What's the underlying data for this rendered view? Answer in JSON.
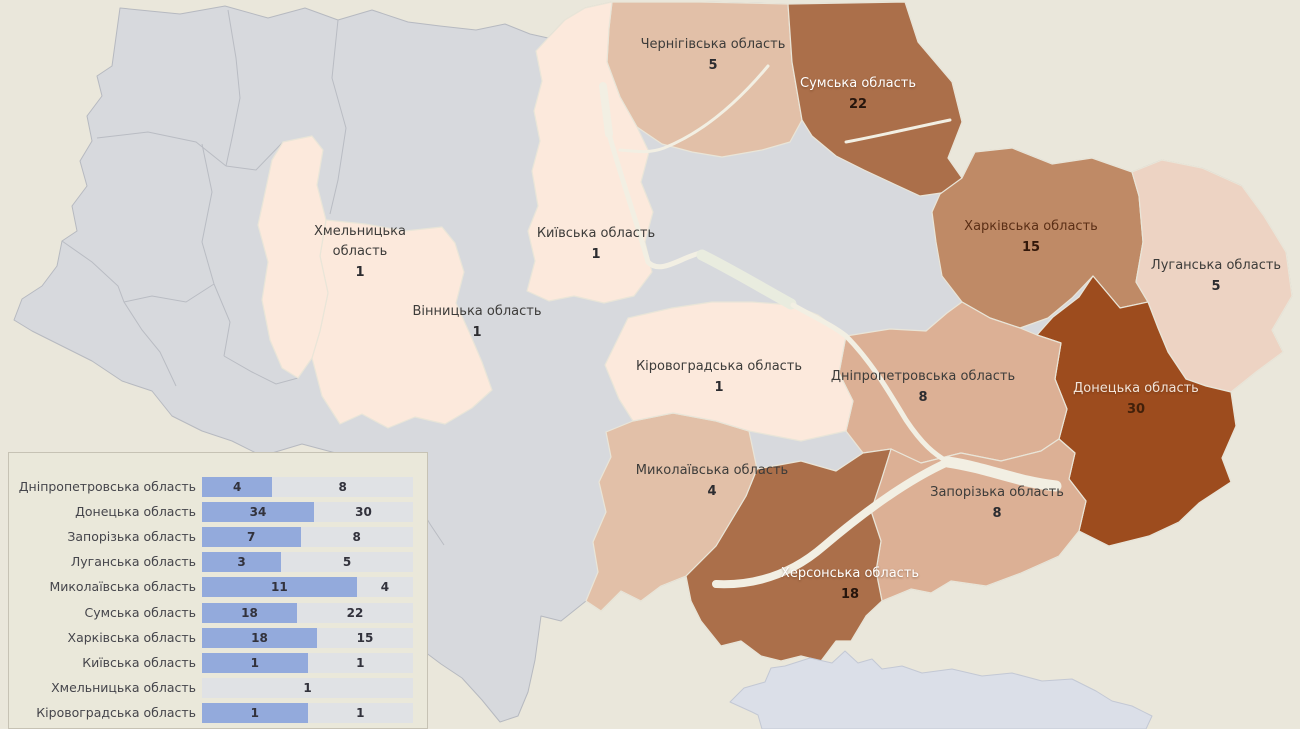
{
  "colors": {
    "background": "#eae7db",
    "region_default_fill": "#d7d9dd",
    "region_border": "#b6b9c0",
    "colored_region_border": "#e9e5d8",
    "crimea_fill": "#dbdfe8",
    "crimea_border": "#c3c8d4",
    "water": "#f2efe3",
    "reservoir": "#e9ecdf",
    "panel_background": "#eae8da",
    "panel_border": "#c6c2b4",
    "bar_fill": "#93aadc",
    "bar_track": "#e0e2e5",
    "choropleth_scale": {
      "1": "#fce9dc",
      "4_5": "#e2c0a8",
      "5_light": "#edd3c3",
      "8": "#dcb095",
      "15": "#bf8a66",
      "18_22": "#ab6f4a",
      "30": "#9d4c1e"
    }
  },
  "map": {
    "regions": [
      {
        "id": "chernihiv",
        "name": "Чернігівська область",
        "value": "5",
        "fill": "#e2c0a8",
        "label_color": "#3d3c3a",
        "value_color": "#2c2c30"
      },
      {
        "id": "sumy",
        "name": "Сумська область",
        "value": "22",
        "fill": "#ab6f4a",
        "label_color": "#ffffff",
        "value_color": "#26150c"
      },
      {
        "id": "kharkiv",
        "name": "Харківська область",
        "value": "15",
        "fill": "#bf8a66",
        "label_color": "#5b2f16",
        "value_color": "#33180a"
      },
      {
        "id": "luhansk",
        "name": "Луганська область",
        "value": "5",
        "fill": "#edd3c3",
        "label_color": "#3d3c3a",
        "value_color": "#2c2c30"
      },
      {
        "id": "donetsk",
        "name": "Донецька область",
        "value": "30",
        "fill": "#9d4c1e",
        "label_color": "#f2e4d9",
        "value_color": "#41200a"
      },
      {
        "id": "dnipro",
        "name": "Дніпропетровська область",
        "value": "8",
        "fill": "#dcb095",
        "label_color": "#3d3c3a",
        "value_color": "#2c2c30"
      },
      {
        "id": "zaporizhzhia",
        "name": "Запорізька область",
        "value": "8",
        "fill": "#dcb095",
        "label_color": "#3d3c3a",
        "value_color": "#2c2c30"
      },
      {
        "id": "kherson",
        "name": "Херсонська область",
        "value": "18",
        "fill": "#ab6f4a",
        "label_color": "#ffffff",
        "value_color": "#26150c"
      },
      {
        "id": "mykolaiv",
        "name": "Миколаївська область",
        "value": "4",
        "fill": "#e2c0a8",
        "label_color": "#3d3c3a",
        "value_color": "#2c2c30"
      },
      {
        "id": "kirovohrad",
        "name": "Кіровоградська область",
        "value": "1",
        "fill": "#fce9dc",
        "label_color": "#3d3c3a",
        "value_color": "#2c2c30"
      },
      {
        "id": "kyiv",
        "name": "Київська область",
        "value": "1",
        "fill": "#fce9dc",
        "label_color": "#3d3c3a",
        "value_color": "#2c2c30"
      },
      {
        "id": "vinnytsia",
        "name": "Вінницька область",
        "value": "1",
        "fill": "#fce9dc",
        "label_color": "#3d3c3a",
        "value_color": "#2c2c30"
      },
      {
        "id": "khmelnytskyi",
        "name": "Хмельницька область",
        "value": "1",
        "fill": "#fce9dc",
        "label_color": "#3d3c3a",
        "value_color": "#2c2c30",
        "two_line": true
      }
    ]
  },
  "panel": {
    "rows": [
      {
        "label": "Дніпропетровська область",
        "v1": "4",
        "v2": "8"
      },
      {
        "label": "Донецька область",
        "v1": "34",
        "v2": "30"
      },
      {
        "label": "Запорізька область",
        "v1": "7",
        "v2": "8"
      },
      {
        "label": "Луганська область",
        "v1": "3",
        "v2": "5"
      },
      {
        "label": "Миколаївська область",
        "v1": "11",
        "v2": "4"
      },
      {
        "label": "Сумська область",
        "v1": "18",
        "v2": "22"
      },
      {
        "label": "Харківська область",
        "v1": "18",
        "v2": "15"
      },
      {
        "label": "Київська область",
        "v1": "1",
        "v2": "1"
      },
      {
        "label": "Хмельницька область",
        "v1": "",
        "v2": "1"
      },
      {
        "label": "Кіровоградська область",
        "v1": "1",
        "v2": "1"
      }
    ],
    "clipped_row_visible": true
  },
  "chart_data": [
    {
      "type": "heatmap",
      "subtype": "choropleth_map_ukraine_oblasts",
      "title": "",
      "legend_position": "none",
      "data": [
        {
          "region": "Чернігівська область",
          "value": 5
        },
        {
          "region": "Сумська область",
          "value": 22
        },
        {
          "region": "Харківська область",
          "value": 15
        },
        {
          "region": "Луганська область",
          "value": 5
        },
        {
          "region": "Донецька область",
          "value": 30
        },
        {
          "region": "Дніпропетровська область",
          "value": 8
        },
        {
          "region": "Запорізька область",
          "value": 8
        },
        {
          "region": "Херсонська область",
          "value": 18
        },
        {
          "region": "Миколаївська область",
          "value": 4
        },
        {
          "region": "Кіровоградська область",
          "value": 1
        },
        {
          "region": "Київська область",
          "value": 1
        },
        {
          "region": "Вінницька область",
          "value": 1
        },
        {
          "region": "Хмельницька область",
          "value": 1
        }
      ]
    },
    {
      "type": "bar",
      "subtype": "horizontal_stacked_100pct",
      "categories": [
        "Дніпропетровська область",
        "Донецька область",
        "Запорізька область",
        "Луганська область",
        "Миколаївська область",
        "Сумська область",
        "Харківська область",
        "Київська область",
        "Хмельницька область",
        "Кіровоградська область"
      ],
      "series": [
        {
          "name": "series_blue",
          "values": [
            4,
            34,
            7,
            3,
            11,
            18,
            18,
            1,
            null,
            1
          ]
        },
        {
          "name": "series_gray",
          "values": [
            8,
            30,
            8,
            5,
            4,
            22,
            15,
            1,
            1,
            1
          ]
        }
      ],
      "legend_position": "none"
    }
  ]
}
